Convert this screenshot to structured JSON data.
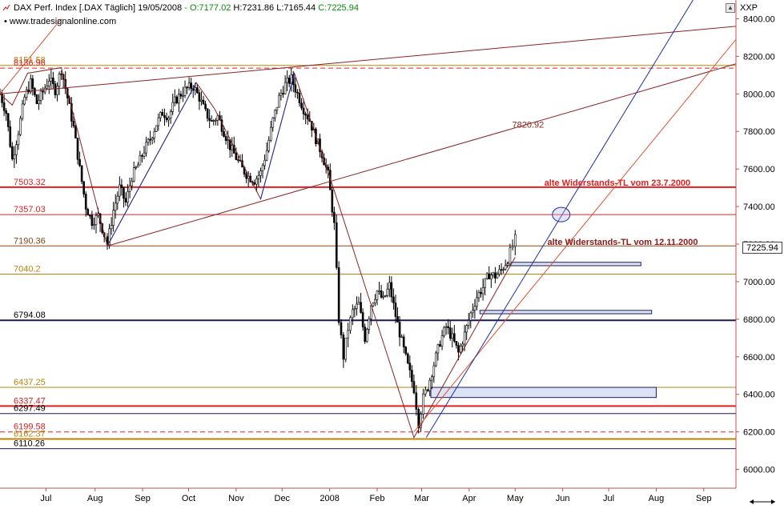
{
  "header": {
    "name": "DAX Perf. Index [.DAX  Täglich]",
    "date": "19/05/2008",
    "open": "- O:7177.02",
    "high": "H:7231.86",
    "low": "L:7165.44",
    "close": "C:7225.94",
    "source": "www.tradesignalonline.com",
    "right_label": "XXP",
    "last_price": "7225.94"
  },
  "colors": {
    "axis": "#c0504d",
    "red_level": "#e02020",
    "gold_level": "#b8860b",
    "navy_level": "#1a1a5a",
    "brown_line": "#8b2323",
    "blue_line": "#1f2fa0",
    "candle": "#000000"
  },
  "chart_data": {
    "type": "candlestick",
    "ylim": [
      5900,
      8500
    ],
    "y_ticks": [
      6000,
      6200,
      6400,
      6600,
      6800,
      7000,
      7200,
      7400,
      7600,
      7800,
      8000,
      8200,
      8400
    ],
    "y_tick_labels": [
      "6000.00",
      "6200.00",
      "6400.00",
      "6600.00",
      "6800.00",
      "7000.00",
      "7200.00",
      "7400.00",
      "7600.00",
      "7800.00",
      "8000.00",
      "8200.00",
      "8400.00"
    ],
    "x_ticks": [
      {
        "label": "Jul",
        "x": 30
      },
      {
        "label": "Aug",
        "x": 62
      },
      {
        "label": "Sep",
        "x": 93
      },
      {
        "label": "Oct",
        "x": 123
      },
      {
        "label": "Nov",
        "x": 154
      },
      {
        "label": "Dec",
        "x": 184
      },
      {
        "label": "2008",
        "x": 215
      },
      {
        "label": "Feb",
        "x": 246
      },
      {
        "label": "Mar",
        "x": 275
      },
      {
        "label": "Apr",
        "x": 306
      },
      {
        "label": "May",
        "x": 336
      },
      {
        "label": "Jun",
        "x": 367
      },
      {
        "label": "Jul",
        "x": 397
      },
      {
        "label": "Aug",
        "x": 428
      },
      {
        "label": "Sep",
        "x": 459
      }
    ],
    "x_range": [
      0,
      480
    ],
    "levels": [
      {
        "value": 8151.58,
        "label": "8151.58",
        "color": "#b8860b",
        "style": "solid"
      },
      {
        "value": 8136.96,
        "label": "8136.96",
        "color": "#e02020",
        "style": "dashed"
      },
      {
        "value": 7503.32,
        "label": "7503.32",
        "color": "#e02020",
        "style": "solid",
        "width": 2
      },
      {
        "value": 7357.03,
        "label": "7357.03",
        "color": "#e02020",
        "style": "solid"
      },
      {
        "value": 7190.36,
        "label": "7190.36",
        "color": "#8b4513",
        "style": "solid"
      },
      {
        "value": 7040.2,
        "label": "7040.2",
        "color": "#b8860b",
        "style": "solid"
      },
      {
        "value": 6794.08,
        "label": "6794.08",
        "color": "#1a1a5a",
        "style": "solid",
        "width": 2
      },
      {
        "value": 6437.25,
        "label": "6437.25",
        "color": "#b8860b",
        "style": "solid"
      },
      {
        "value": 6337.47,
        "label": "6337.47",
        "color": "#e02020",
        "style": "solid",
        "width": 2
      },
      {
        "value": 6297.49,
        "label": "6297.49",
        "color": "#1a1a5a",
        "style": "solid"
      },
      {
        "value": 6199.58,
        "label": "6199.58",
        "color": "#e02020",
        "style": "dashed"
      },
      {
        "value": 6162.37,
        "label": "6162.37",
        "color": "#b8860b",
        "style": "solid",
        "width": 2
      },
      {
        "value": 6110.26,
        "label": "6110.26",
        "color": "#1a1a5a",
        "style": "solid"
      }
    ],
    "trendlines": [
      {
        "x1": 70,
        "y1": 7190,
        "x2": 480,
        "y2": 8160,
        "color": "#8b2323"
      },
      {
        "x1": 0,
        "y1": 8000,
        "x2": 480,
        "y2": 8360,
        "color": "#8b2323"
      },
      {
        "x1": 270,
        "y1": 6200,
        "x2": 480,
        "y2": 8290,
        "color": "#e05030"
      },
      {
        "x1": 278,
        "y1": 6170,
        "x2": 452,
        "y2": 8500,
        "color": "#1f2fa0"
      }
    ],
    "zigzags": [
      {
        "color": "#8b2323",
        "points": [
          [
            0,
            8000
          ],
          [
            8,
            7940
          ],
          [
            18,
            8110
          ],
          [
            40,
            8140
          ],
          [
            70,
            7190
          ],
          [
            128,
            8060
          ],
          [
            140,
            7920
          ],
          [
            170,
            7440
          ],
          [
            192,
            8110
          ],
          [
            215,
            7560
          ],
          [
            270,
            6170
          ],
          [
            336,
            7130
          ]
        ]
      },
      {
        "color": "#1f2fa0",
        "points": [
          [
            70,
            7190
          ],
          [
            128,
            8060
          ]
        ]
      },
      {
        "color": "#1f2fa0",
        "points": [
          [
            170,
            7440
          ],
          [
            192,
            8110
          ]
        ]
      },
      {
        "color": "#e05030",
        "points": [
          [
            0,
            8000
          ],
          [
            40,
            8400
          ]
        ]
      }
    ],
    "annotations": [
      {
        "text": "7820.92",
        "x": 334,
        "y": 7820,
        "color": "#8b2323",
        "bold": false
      },
      {
        "text": "alte Widerstands-TL vom 23.7.2000",
        "x": 355,
        "y": 7512,
        "color": "#e02020",
        "bold": true
      },
      {
        "text": "alte Widerstands-TL vom 12.11.2000",
        "x": 357,
        "y": 7195,
        "color": "#8b1a1a",
        "bold": true
      }
    ],
    "zones": [
      {
        "x1": 331,
        "x2": 418,
        "y_low": 7085,
        "y_high": 7103
      },
      {
        "x1": 313,
        "x2": 425,
        "y_low": 6829,
        "y_high": 6847
      },
      {
        "x1": 281,
        "x2": 428,
        "y_low": 6383,
        "y_high": 6437
      }
    ],
    "ellipse": {
      "x": 366,
      "y": 7357
    },
    "anchors": [
      [
        0,
        8000
      ],
      [
        4,
        7900
      ],
      [
        8,
        7650
      ],
      [
        12,
        7800
      ],
      [
        16,
        7980
      ],
      [
        20,
        8060
      ],
      [
        24,
        7950
      ],
      [
        28,
        8010
      ],
      [
        32,
        8080
      ],
      [
        36,
        8020
      ],
      [
        40,
        8130
      ],
      [
        44,
        7980
      ],
      [
        48,
        7820
      ],
      [
        52,
        7600
      ],
      [
        56,
        7400
      ],
      [
        60,
        7320
      ],
      [
        64,
        7350
      ],
      [
        68,
        7250
      ],
      [
        70,
        7200
      ],
      [
        74,
        7380
      ],
      [
        78,
        7500
      ],
      [
        82,
        7420
      ],
      [
        86,
        7560
      ],
      [
        90,
        7620
      ],
      [
        94,
        7700
      ],
      [
        98,
        7760
      ],
      [
        102,
        7840
      ],
      [
        106,
        7900
      ],
      [
        110,
        7880
      ],
      [
        114,
        7960
      ],
      [
        118,
        8000
      ],
      [
        122,
        8030
      ],
      [
        126,
        8040
      ],
      [
        130,
        7980
      ],
      [
        134,
        7900
      ],
      [
        138,
        7850
      ],
      [
        142,
        7880
      ],
      [
        146,
        7800
      ],
      [
        150,
        7720
      ],
      [
        154,
        7660
      ],
      [
        158,
        7600
      ],
      [
        162,
        7560
      ],
      [
        166,
        7540
      ],
      [
        170,
        7580
      ],
      [
        174,
        7700
      ],
      [
        178,
        7860
      ],
      [
        182,
        7980
      ],
      [
        186,
        8050
      ],
      [
        190,
        8080
      ],
      [
        194,
        8000
      ],
      [
        198,
        7920
      ],
      [
        202,
        7860
      ],
      [
        206,
        7760
      ],
      [
        210,
        7680
      ],
      [
        214,
        7570
      ],
      [
        218,
        7300
      ],
      [
        221,
        6800
      ],
      [
        224,
        6600
      ],
      [
        227,
        6750
      ],
      [
        230,
        6840
      ],
      [
        234,
        6880
      ],
      [
        238,
        6700
      ],
      [
        242,
        6880
      ],
      [
        246,
        6950
      ],
      [
        250,
        6900
      ],
      [
        254,
        6980
      ],
      [
        258,
        6820
      ],
      [
        262,
        6680
      ],
      [
        266,
        6550
      ],
      [
        270,
        6430
      ],
      [
        273,
        6250
      ],
      [
        276,
        6380
      ],
      [
        279,
        6440
      ],
      [
        283,
        6560
      ],
      [
        287,
        6680
      ],
      [
        291,
        6760
      ],
      [
        295,
        6700
      ],
      [
        299,
        6620
      ],
      [
        303,
        6720
      ],
      [
        307,
        6830
      ],
      [
        311,
        6920
      ],
      [
        315,
        6970
      ],
      [
        319,
        7040
      ],
      [
        323,
        7030
      ],
      [
        327,
        7060
      ],
      [
        331,
        7120
      ],
      [
        336,
        7225
      ]
    ]
  }
}
